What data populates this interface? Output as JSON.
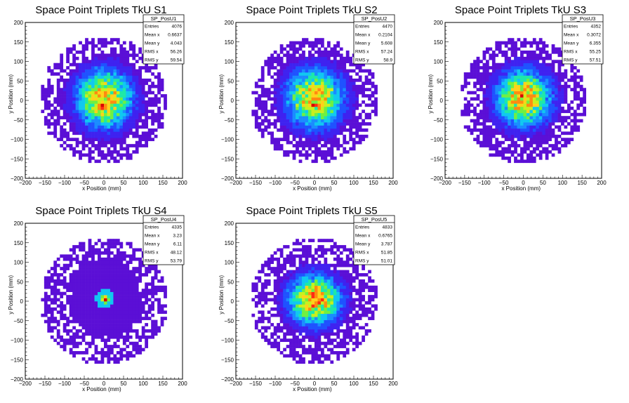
{
  "chart_data": [
    {
      "type": "heatmap",
      "title": "Space Point Triplets TkU S1",
      "xlabel": "x Position (mm)",
      "ylabel": "y Position (mm)",
      "xlim": [
        -200,
        200
      ],
      "ylim": [
        -200,
        200
      ],
      "xticks": [
        "−200",
        "−150",
        "−100",
        "−50",
        "0",
        "50",
        "100",
        "150",
        "200"
      ],
      "yticks": [
        "−200",
        "−150",
        "−100",
        "−50",
        "0",
        "50",
        "100",
        "150",
        "200"
      ],
      "stats": {
        "name": "SP_PosU1",
        "rows": [
          [
            "Entries",
            "4076"
          ],
          [
            "Mean x",
            "0.6637"
          ],
          [
            "Mean y",
            "4.043"
          ],
          [
            "RMS x",
            "56.26"
          ],
          [
            "RMS y",
            "59.54"
          ]
        ]
      },
      "distribution": {
        "mean_x": 0.6637,
        "mean_y": 4.043,
        "rms_x": 56.26,
        "rms_y": 59.54,
        "entries": 4076,
        "radius": 160
      },
      "peak_bins": 1
    },
    {
      "type": "heatmap",
      "title": "Space Point Triplets TkU S2",
      "xlabel": "x Position (mm)",
      "ylabel": "y Position (mm)",
      "xlim": [
        -200,
        200
      ],
      "ylim": [
        -200,
        200
      ],
      "xticks": [
        "−200",
        "−150",
        "−100",
        "−50",
        "0",
        "50",
        "100",
        "150",
        "200"
      ],
      "yticks": [
        "−200",
        "−150",
        "−100",
        "−50",
        "0",
        "50",
        "100",
        "150",
        "200"
      ],
      "stats": {
        "name": "SP_PosU2",
        "rows": [
          [
            "Entries",
            "4470"
          ],
          [
            "Mean x",
            "0.2104"
          ],
          [
            "Mean y",
            "5.608"
          ],
          [
            "RMS x",
            "57.24"
          ],
          [
            "RMS y",
            "58.9"
          ]
        ]
      },
      "distribution": {
        "mean_x": 0.2104,
        "mean_y": 5.608,
        "rms_x": 57.24,
        "rms_y": 58.9,
        "entries": 4470,
        "radius": 160
      },
      "peak_bins": 1
    },
    {
      "type": "heatmap",
      "title": "Space Point Triplets TkU S3",
      "xlabel": "x Position (mm)",
      "ylabel": "y Position (mm)",
      "xlim": [
        -200,
        200
      ],
      "ylim": [
        -200,
        200
      ],
      "xticks": [
        "−200",
        "−150",
        "−100",
        "−50",
        "0",
        "50",
        "100",
        "150",
        "200"
      ],
      "yticks": [
        "−200",
        "−150",
        "−100",
        "−50",
        "0",
        "50",
        "100",
        "150",
        "200"
      ],
      "stats": {
        "name": "SP_PosU3",
        "rows": [
          [
            "Entries",
            "4352"
          ],
          [
            "Mean x",
            "0.3072"
          ],
          [
            "Mean y",
            "6.355"
          ],
          [
            "RMS x",
            "55.25"
          ],
          [
            "RMS y",
            "57.51"
          ]
        ]
      },
      "distribution": {
        "mean_x": 0.3072,
        "mean_y": 6.355,
        "rms_x": 55.25,
        "rms_y": 57.51,
        "entries": 4352,
        "radius": 160
      },
      "peak_bins": 2
    },
    {
      "type": "heatmap",
      "title": "Space Point Triplets TkU S4",
      "xlabel": "x Position (mm)",
      "ylabel": "y Position (mm)",
      "xlim": [
        -200,
        200
      ],
      "ylim": [
        -200,
        200
      ],
      "xticks": [
        "−200",
        "−150",
        "−100",
        "−50",
        "0",
        "50",
        "100",
        "150",
        "200"
      ],
      "yticks": [
        "−200",
        "−150",
        "−100",
        "−50",
        "0",
        "50",
        "100",
        "150",
        "200"
      ],
      "stats": {
        "name": "SP_PosU4",
        "rows": [
          [
            "Entries",
            "4335"
          ],
          [
            "Mean x",
            "3.23"
          ],
          [
            "Mean y",
            "6.11"
          ],
          [
            "RMS x",
            "48.12"
          ],
          [
            "RMS y",
            "53.79"
          ]
        ]
      },
      "distribution": {
        "mean_x": 3.23,
        "mean_y": 6.11,
        "rms_x": 48.12,
        "rms_y": 53.79,
        "entries": 4335,
        "radius": 160
      },
      "peak_bins": 3
    },
    {
      "type": "heatmap",
      "title": "Space Point Triplets TkU S5",
      "xlabel": "x Position (mm)",
      "ylabel": "y Position (mm)",
      "xlim": [
        -200,
        200
      ],
      "ylim": [
        -200,
        200
      ],
      "xticks": [
        "−200",
        "−150",
        "−100",
        "−50",
        "0",
        "50",
        "100",
        "150",
        "200"
      ],
      "yticks": [
        "−200",
        "−150",
        "−100",
        "−50",
        "0",
        "50",
        "100",
        "150",
        "200"
      ],
      "stats": {
        "name": "SP_PosU5",
        "rows": [
          [
            "Entries",
            "4833"
          ],
          [
            "Mean x",
            "0.6765"
          ],
          [
            "Mean y",
            "3.787"
          ],
          [
            "RMS x",
            "51.85"
          ],
          [
            "RMS y",
            "51.01"
          ]
        ]
      },
      "distribution": {
        "mean_x": 0.6765,
        "mean_y": 3.787,
        "rms_x": 51.85,
        "rms_y": 51.01,
        "entries": 4833,
        "radius": 160
      },
      "peak_bins": 2
    }
  ],
  "colors": {
    "palette": [
      "#5b0fd6",
      "#3f22f0",
      "#1f52ff",
      "#1a8cff",
      "#10c8f0",
      "#1ee8a8",
      "#70f040",
      "#c8f01e",
      "#ffd21a",
      "#ff8a10",
      "#ff2a14",
      "#d80000"
    ],
    "frame": "#000000",
    "background": "#ffffff"
  }
}
